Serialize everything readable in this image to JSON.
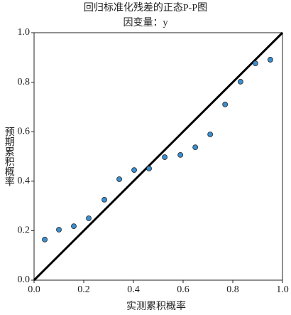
{
  "chart_data": {
    "type": "scatter",
    "title": "回归标准化残差的正态P-P图",
    "subtitle": "因变量：y",
    "x_label": "实测累积概率",
    "y_label": "预期累积概率",
    "x": [
      0.043,
      0.1,
      0.16,
      0.22,
      0.283,
      0.343,
      0.403,
      0.463,
      0.526,
      0.589,
      0.649,
      0.709,
      0.769,
      0.831,
      0.891,
      0.951
    ],
    "values": [
      0.164,
      0.204,
      0.218,
      0.25,
      0.325,
      0.408,
      0.445,
      0.451,
      0.497,
      0.506,
      0.537,
      0.589,
      0.71,
      0.802,
      0.876,
      0.891
    ],
    "color": "#3a8fd0",
    "xlim": [
      0,
      1
    ],
    "ylim": [
      0,
      1
    ],
    "xticks": [
      {
        "value": 0,
        "label": "0.0"
      },
      {
        "value": 0.2,
        "label": "0.2"
      },
      {
        "value": 0.4,
        "label": "0.4"
      },
      {
        "value": 0.6,
        "label": "0.6"
      },
      {
        "value": 0.8,
        "label": "0.8"
      },
      {
        "value": 1,
        "label": "1.0"
      }
    ],
    "yticks": [
      {
        "value": 0,
        "label": "0.0"
      },
      {
        "value": 0.2,
        "label": "0.2"
      },
      {
        "value": 0.4,
        "label": "0.4"
      },
      {
        "value": 0.6,
        "label": "0.6"
      },
      {
        "value": 0.8,
        "label": "0.8"
      },
      {
        "value": 1,
        "label": "1.0"
      }
    ],
    "grid": false
  }
}
